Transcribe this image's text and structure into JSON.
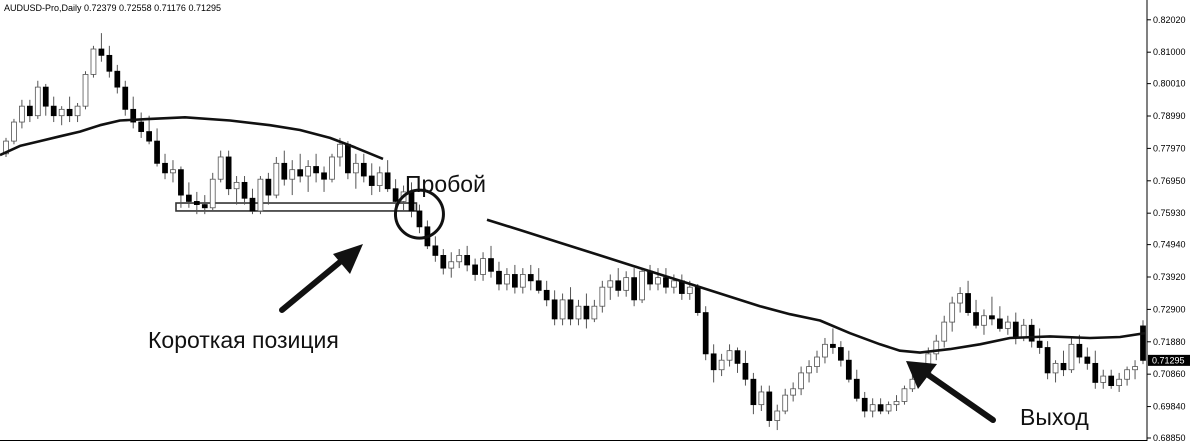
{
  "window": {
    "symbol_line": "AUDUSD-Pro,Daily  0.72379 0.72558 0.71176 0.71295"
  },
  "price_axis": {
    "ticks": [
      "0.82020",
      "0.81000",
      "0.80010",
      "0.78990",
      "0.77970",
      "0.76950",
      "0.75930",
      "0.74940",
      "0.73920",
      "0.72900",
      "0.71880",
      "0.70860",
      "0.69840",
      "0.68850"
    ],
    "current_price": "0.71295"
  },
  "annotations": {
    "breakout": "Пробой",
    "short_position": "Короткая позиция",
    "exit": "Выход"
  },
  "colors": {
    "background": "#ffffff",
    "bull_candle": "#ffffff",
    "bear_candle": "#000000",
    "candle_outline": "#555555",
    "moving_average": "#111111",
    "price_tag_bg": "#000000",
    "price_tag_text": "#ffffff"
  },
  "chart_data": {
    "type": "candlestick",
    "timeframe": "Daily",
    "symbol": "AUDUSD-Pro",
    "ylim": [
      0.6885,
      0.8236
    ],
    "grid": false,
    "last_ohlc": {
      "open": 0.72379,
      "high": 0.72558,
      "low": 0.71176,
      "close": 0.71295
    },
    "candles": [
      [
        0.778,
        0.783,
        0.777,
        0.782
      ],
      [
        0.782,
        0.789,
        0.781,
        0.788
      ],
      [
        0.788,
        0.795,
        0.786,
        0.793
      ],
      [
        0.793,
        0.795,
        0.788,
        0.79
      ],
      [
        0.79,
        0.801,
        0.789,
        0.799
      ],
      [
        0.799,
        0.8,
        0.79,
        0.793
      ],
      [
        0.793,
        0.796,
        0.788,
        0.79
      ],
      [
        0.79,
        0.793,
        0.787,
        0.792
      ],
      [
        0.792,
        0.796,
        0.788,
        0.79
      ],
      [
        0.79,
        0.794,
        0.788,
        0.793
      ],
      [
        0.793,
        0.804,
        0.792,
        0.803
      ],
      [
        0.803,
        0.812,
        0.802,
        0.811
      ],
      [
        0.811,
        0.816,
        0.807,
        0.809
      ],
      [
        0.809,
        0.812,
        0.802,
        0.804
      ],
      [
        0.804,
        0.806,
        0.797,
        0.799
      ],
      [
        0.799,
        0.801,
        0.79,
        0.792
      ],
      [
        0.792,
        0.796,
        0.786,
        0.788
      ],
      [
        0.788,
        0.791,
        0.783,
        0.785
      ],
      [
        0.785,
        0.79,
        0.781,
        0.782
      ],
      [
        0.782,
        0.786,
        0.774,
        0.775
      ],
      [
        0.775,
        0.778,
        0.77,
        0.772
      ],
      [
        0.772,
        0.776,
        0.769,
        0.773
      ],
      [
        0.773,
        0.774,
        0.761,
        0.765
      ],
      [
        0.765,
        0.769,
        0.761,
        0.763
      ],
      [
        0.763,
        0.766,
        0.759,
        0.762
      ],
      [
        0.762,
        0.765,
        0.759,
        0.761
      ],
      [
        0.761,
        0.772,
        0.76,
        0.77
      ],
      [
        0.77,
        0.779,
        0.769,
        0.777
      ],
      [
        0.777,
        0.779,
        0.765,
        0.767
      ],
      [
        0.767,
        0.771,
        0.762,
        0.769
      ],
      [
        0.769,
        0.771,
        0.762,
        0.764
      ],
      [
        0.764,
        0.767,
        0.759,
        0.76
      ],
      [
        0.76,
        0.771,
        0.759,
        0.77
      ],
      [
        0.77,
        0.772,
        0.762,
        0.765
      ],
      [
        0.765,
        0.777,
        0.764,
        0.775
      ],
      [
        0.775,
        0.779,
        0.768,
        0.77
      ],
      [
        0.77,
        0.776,
        0.765,
        0.773
      ],
      [
        0.773,
        0.778,
        0.769,
        0.771
      ],
      [
        0.771,
        0.776,
        0.766,
        0.774
      ],
      [
        0.774,
        0.778,
        0.769,
        0.772
      ],
      [
        0.772,
        0.774,
        0.766,
        0.77
      ],
      [
        0.77,
        0.778,
        0.769,
        0.777
      ],
      [
        0.777,
        0.783,
        0.774,
        0.781
      ],
      [
        0.781,
        0.782,
        0.77,
        0.772
      ],
      [
        0.772,
        0.778,
        0.767,
        0.775
      ],
      [
        0.775,
        0.778,
        0.769,
        0.771
      ],
      [
        0.771,
        0.775,
        0.765,
        0.768
      ],
      [
        0.768,
        0.774,
        0.766,
        0.772
      ],
      [
        0.772,
        0.776,
        0.766,
        0.767
      ],
      [
        0.767,
        0.77,
        0.761,
        0.763
      ],
      [
        0.763,
        0.768,
        0.76,
        0.766
      ],
      [
        0.766,
        0.769,
        0.758,
        0.76
      ],
      [
        0.76,
        0.762,
        0.753,
        0.755
      ],
      [
        0.755,
        0.757,
        0.748,
        0.749
      ],
      [
        0.749,
        0.752,
        0.744,
        0.746
      ],
      [
        0.746,
        0.748,
        0.74,
        0.742
      ],
      [
        0.742,
        0.747,
        0.739,
        0.744
      ],
      [
        0.744,
        0.748,
        0.742,
        0.746
      ],
      [
        0.746,
        0.749,
        0.741,
        0.743
      ],
      [
        0.743,
        0.745,
        0.738,
        0.74
      ],
      [
        0.74,
        0.747,
        0.738,
        0.745
      ],
      [
        0.745,
        0.749,
        0.739,
        0.741
      ],
      [
        0.741,
        0.744,
        0.735,
        0.737
      ],
      [
        0.737,
        0.742,
        0.735,
        0.74
      ],
      [
        0.74,
        0.743,
        0.734,
        0.736
      ],
      [
        0.736,
        0.742,
        0.734,
        0.74
      ],
      [
        0.74,
        0.743,
        0.735,
        0.738
      ],
      [
        0.738,
        0.742,
        0.734,
        0.735
      ],
      [
        0.735,
        0.738,
        0.73,
        0.732
      ],
      [
        0.732,
        0.735,
        0.724,
        0.726
      ],
      [
        0.726,
        0.734,
        0.724,
        0.732
      ],
      [
        0.732,
        0.736,
        0.724,
        0.726
      ],
      [
        0.726,
        0.732,
        0.724,
        0.73
      ],
      [
        0.73,
        0.734,
        0.723,
        0.726
      ],
      [
        0.726,
        0.732,
        0.725,
        0.73
      ],
      [
        0.73,
        0.738,
        0.728,
        0.736
      ],
      [
        0.736,
        0.74,
        0.732,
        0.738
      ],
      [
        0.738,
        0.742,
        0.733,
        0.735
      ],
      [
        0.735,
        0.741,
        0.733,
        0.739
      ],
      [
        0.739,
        0.742,
        0.73,
        0.732
      ],
      [
        0.732,
        0.742,
        0.731,
        0.741
      ],
      [
        0.741,
        0.743,
        0.735,
        0.737
      ],
      [
        0.737,
        0.742,
        0.735,
        0.739
      ],
      [
        0.739,
        0.742,
        0.734,
        0.736
      ],
      [
        0.736,
        0.74,
        0.734,
        0.738
      ],
      [
        0.738,
        0.74,
        0.732,
        0.734
      ],
      [
        0.734,
        0.738,
        0.732,
        0.736
      ],
      [
        0.736,
        0.737,
        0.727,
        0.728
      ],
      [
        0.728,
        0.73,
        0.713,
        0.715
      ],
      [
        0.715,
        0.718,
        0.706,
        0.71
      ],
      [
        0.71,
        0.715,
        0.708,
        0.713
      ],
      [
        0.713,
        0.718,
        0.711,
        0.716
      ],
      [
        0.716,
        0.717,
        0.709,
        0.712
      ],
      [
        0.712,
        0.716,
        0.705,
        0.707
      ],
      [
        0.707,
        0.709,
        0.696,
        0.699
      ],
      [
        0.699,
        0.705,
        0.697,
        0.703
      ],
      [
        0.703,
        0.705,
        0.692,
        0.694
      ],
      [
        0.694,
        0.699,
        0.691,
        0.697
      ],
      [
        0.697,
        0.704,
        0.696,
        0.702
      ],
      [
        0.702,
        0.706,
        0.7,
        0.704
      ],
      [
        0.704,
        0.711,
        0.702,
        0.709
      ],
      [
        0.709,
        0.713,
        0.706,
        0.711
      ],
      [
        0.711,
        0.716,
        0.709,
        0.714
      ],
      [
        0.714,
        0.72,
        0.712,
        0.718
      ],
      [
        0.718,
        0.723,
        0.715,
        0.717
      ],
      [
        0.717,
        0.719,
        0.711,
        0.713
      ],
      [
        0.713,
        0.716,
        0.706,
        0.707
      ],
      [
        0.707,
        0.71,
        0.7,
        0.701
      ],
      [
        0.701,
        0.703,
        0.695,
        0.697
      ],
      [
        0.697,
        0.701,
        0.695,
        0.699
      ],
      [
        0.699,
        0.701,
        0.696,
        0.697
      ],
      [
        0.697,
        0.7,
        0.696,
        0.699
      ],
      [
        0.699,
        0.702,
        0.697,
        0.7
      ],
      [
        0.7,
        0.705,
        0.699,
        0.704
      ],
      [
        0.704,
        0.709,
        0.703,
        0.707
      ],
      [
        0.707,
        0.711,
        0.705,
        0.709
      ],
      [
        0.709,
        0.717,
        0.708,
        0.715
      ],
      [
        0.715,
        0.721,
        0.713,
        0.719
      ],
      [
        0.719,
        0.727,
        0.717,
        0.725
      ],
      [
        0.725,
        0.733,
        0.722,
        0.731
      ],
      [
        0.731,
        0.736,
        0.728,
        0.734
      ],
      [
        0.734,
        0.738,
        0.727,
        0.728
      ],
      [
        0.728,
        0.732,
        0.723,
        0.724
      ],
      [
        0.724,
        0.729,
        0.721,
        0.727
      ],
      [
        0.727,
        0.733,
        0.724,
        0.726
      ],
      [
        0.726,
        0.73,
        0.722,
        0.723
      ],
      [
        0.723,
        0.727,
        0.721,
        0.725
      ],
      [
        0.725,
        0.728,
        0.718,
        0.72
      ],
      [
        0.72,
        0.726,
        0.719,
        0.724
      ],
      [
        0.724,
        0.726,
        0.717,
        0.719
      ],
      [
        0.719,
        0.723,
        0.715,
        0.717
      ],
      [
        0.717,
        0.719,
        0.707,
        0.709
      ],
      [
        0.709,
        0.713,
        0.706,
        0.712
      ],
      [
        0.712,
        0.716,
        0.708,
        0.71
      ],
      [
        0.71,
        0.72,
        0.709,
        0.718
      ],
      [
        0.718,
        0.721,
        0.712,
        0.714
      ],
      [
        0.714,
        0.717,
        0.71,
        0.712
      ],
      [
        0.712,
        0.716,
        0.704,
        0.706
      ],
      [
        0.706,
        0.71,
        0.704,
        0.708
      ],
      [
        0.708,
        0.71,
        0.704,
        0.705
      ],
      [
        0.705,
        0.709,
        0.703,
        0.707
      ],
      [
        0.707,
        0.711,
        0.705,
        0.71
      ],
      [
        0.71,
        0.713,
        0.707,
        0.711
      ],
      [
        0.72379,
        0.72558,
        0.71176,
        0.71295
      ]
    ],
    "moving_average": [
      [
        0,
        0.7776
      ],
      [
        20,
        0.7805
      ],
      [
        40,
        0.782
      ],
      [
        60,
        0.7835
      ],
      [
        80,
        0.785
      ],
      [
        100,
        0.787
      ],
      [
        120,
        0.7885
      ],
      [
        150,
        0.789
      ],
      [
        185,
        0.7895
      ],
      [
        230,
        0.7885
      ],
      [
        270,
        0.787
      ],
      [
        300,
        0.7855
      ],
      [
        330,
        0.783
      ],
      [
        355,
        0.78
      ],
      [
        383,
        0.7764
      ],
      [
        487,
        0.7572
      ],
      [
        520,
        0.754
      ],
      [
        560,
        0.75
      ],
      [
        600,
        0.746
      ],
      [
        640,
        0.742
      ],
      [
        680,
        0.738
      ],
      [
        720,
        0.734
      ],
      [
        760,
        0.73
      ],
      [
        790,
        0.7275
      ],
      [
        820,
        0.7255
      ],
      [
        850,
        0.7215
      ],
      [
        880,
        0.718
      ],
      [
        900,
        0.716
      ],
      [
        920,
        0.7154
      ],
      [
        950,
        0.7165
      ],
      [
        980,
        0.718
      ],
      [
        1010,
        0.72
      ],
      [
        1050,
        0.7205
      ],
      [
        1090,
        0.72
      ],
      [
        1120,
        0.7203
      ],
      [
        1145,
        0.7215
      ]
    ],
    "breakout_box": {
      "x_start": 0.7625,
      "x_end": 0.76,
      "price_high": 0.7625,
      "price_low": 0.76,
      "candle_from": 22,
      "candle_to": 51
    }
  }
}
